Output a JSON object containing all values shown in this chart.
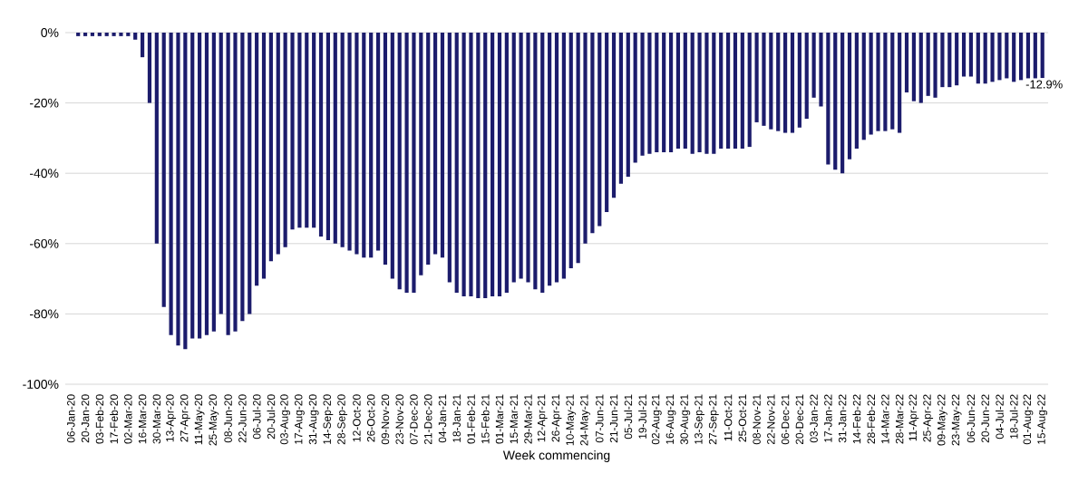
{
  "chart_data": {
    "type": "bar",
    "xlabel": "Week commencing",
    "categories": [
      "06-Jan-20",
      null,
      "20-Jan-20",
      null,
      "03-Feb-20",
      null,
      "17-Feb-20",
      null,
      "02-Mar-20",
      null,
      "16-Mar-20",
      null,
      "30-Mar-20",
      null,
      "13-Apr-20",
      null,
      "27-Apr-20",
      null,
      "11-May-20",
      null,
      "25-May-20",
      null,
      "08-Jun-20",
      null,
      "22-Jun-20",
      null,
      "06-Jul-20",
      null,
      "20-Jul-20",
      null,
      "03-Aug-20",
      null,
      "17-Aug-20",
      null,
      "31-Aug-20",
      null,
      "14-Sep-20",
      null,
      "28-Sep-20",
      null,
      "12-Oct-20",
      null,
      "26-Oct-20",
      null,
      "09-Nov-20",
      null,
      "23-Nov-20",
      null,
      "07-Dec-20",
      null,
      "21-Dec-20",
      null,
      "04-Jan-21",
      null,
      "18-Jan-21",
      null,
      "01-Feb-21",
      null,
      "15-Feb-21",
      null,
      "01-Mar-21",
      null,
      "15-Mar-21",
      null,
      "29-Mar-21",
      null,
      "12-Apr-21",
      null,
      "26-Apr-21",
      null,
      "10-May-21",
      null,
      "24-May-21",
      null,
      "07-Jun-21",
      null,
      "21-Jun-21",
      null,
      "05-Jul-21",
      null,
      "19-Jul-21",
      null,
      "02-Aug-21",
      null,
      "16-Aug-21",
      null,
      "30-Aug-21",
      null,
      "13-Sep-21",
      null,
      "27-Sep-21",
      null,
      "11-Oct-21",
      null,
      "25-Oct-21",
      null,
      "08-Nov-21",
      null,
      "22-Nov-21",
      null,
      "06-Dec-21",
      null,
      "20-Dec-21",
      null,
      "03-Jan-22",
      null,
      "17-Jan-22",
      null,
      "31-Jan-22",
      null,
      "14-Feb-22",
      null,
      "28-Feb-22",
      null,
      "14-Mar-22",
      null,
      "28-Mar-22",
      null,
      "11-Apr-22",
      null,
      "25-Apr-22",
      null,
      "09-May-22",
      null,
      "23-May-22",
      null,
      "06-Jun-22",
      null,
      "20-Jun-22",
      null,
      "04-Jul-22",
      null,
      "18-Jul-22",
      null,
      "01-Aug-22",
      null,
      "15-Aug-22"
    ],
    "values": [
      0,
      -1,
      -1,
      -1,
      -1,
      -1,
      -1,
      -1,
      -1,
      -2,
      -7,
      -20,
      -60,
      -78,
      -86,
      -89,
      -90,
      -87,
      -87,
      -86,
      -85,
      -80,
      -86,
      -85,
      -82,
      -80,
      -72,
      -70,
      -65,
      -63,
      -61,
      -56,
      -55.5,
      -55.5,
      -55.5,
      -58,
      -59,
      -60,
      -61,
      -62,
      -63,
      -64,
      -64,
      -62,
      -66,
      -70,
      -73,
      -74,
      -74,
      -69,
      -66,
      -63,
      -64,
      -71,
      -74,
      -75,
      -75,
      -75.5,
      -75.5,
      -75,
      -75,
      -74,
      -71,
      -70,
      -71,
      -73,
      -74,
      -72,
      -71,
      -70,
      -67,
      -65.5,
      -60,
      -57,
      -55,
      -51,
      -47,
      -43,
      -41,
      -37,
      -35,
      -34.5,
      -34,
      -34,
      -34,
      -33,
      -33,
      -34.5,
      -34,
      -34.5,
      -34.5,
      -33,
      -33,
      -33,
      -33,
      -32.5,
      -25.5,
      -26.5,
      -27.5,
      -28,
      -28.5,
      -28.5,
      -27,
      -24.5,
      -18.5,
      -21,
      -37.5,
      -39,
      -40,
      -36,
      -33,
      -30.5,
      -29,
      -28,
      -28,
      -27.5,
      -28.5,
      -17,
      -19.5,
      -20,
      -18,
      -18.5,
      -15.5,
      -15.5,
      -15,
      -12.5,
      -12.5,
      -14.5,
      -14.5,
      -14,
      -13.5,
      -13,
      -14,
      -13.5,
      -13,
      -13,
      -12.9
    ],
    "value_labels": [
      null,
      null,
      null,
      null,
      null,
      null,
      null,
      null,
      null,
      null,
      null,
      null,
      null,
      null,
      null,
      null,
      null,
      null,
      null,
      null,
      null,
      null,
      null,
      null,
      null,
      null,
      null,
      null,
      null,
      null,
      null,
      null,
      null,
      null,
      null,
      null,
      null,
      null,
      null,
      null,
      null,
      null,
      null,
      null,
      null,
      null,
      null,
      null,
      null,
      null,
      null,
      null,
      null,
      null,
      null,
      null,
      null,
      null,
      null,
      null,
      null,
      null,
      null,
      null,
      null,
      null,
      null,
      null,
      null,
      null,
      null,
      null,
      null,
      null,
      null,
      null,
      null,
      null,
      null,
      null,
      null,
      null,
      null,
      null,
      null,
      null,
      null,
      null,
      null,
      null,
      null,
      null,
      null,
      null,
      null,
      null,
      null,
      null,
      null,
      null,
      null,
      null,
      null,
      null,
      null,
      null,
      null,
      null,
      null,
      null,
      null,
      null,
      null,
      null,
      null,
      null,
      null,
      null,
      null,
      null,
      null,
      null,
      null,
      null,
      null,
      null,
      null,
      null,
      null,
      null,
      null,
      null,
      null,
      null,
      null,
      null,
      "-12.9%"
    ],
    "color": "#1c1c6c",
    "ylim": [
      -100,
      0
    ],
    "yticks": [
      {
        "value": -100,
        "label": "-100%"
      },
      {
        "value": -80,
        "label": "-80%"
      },
      {
        "value": -60,
        "label": "-60%"
      },
      {
        "value": -40,
        "label": "-40%"
      },
      {
        "value": -20,
        "label": "-20%"
      },
      {
        "value": 0,
        "label": "0%"
      }
    ],
    "grid": "y"
  }
}
